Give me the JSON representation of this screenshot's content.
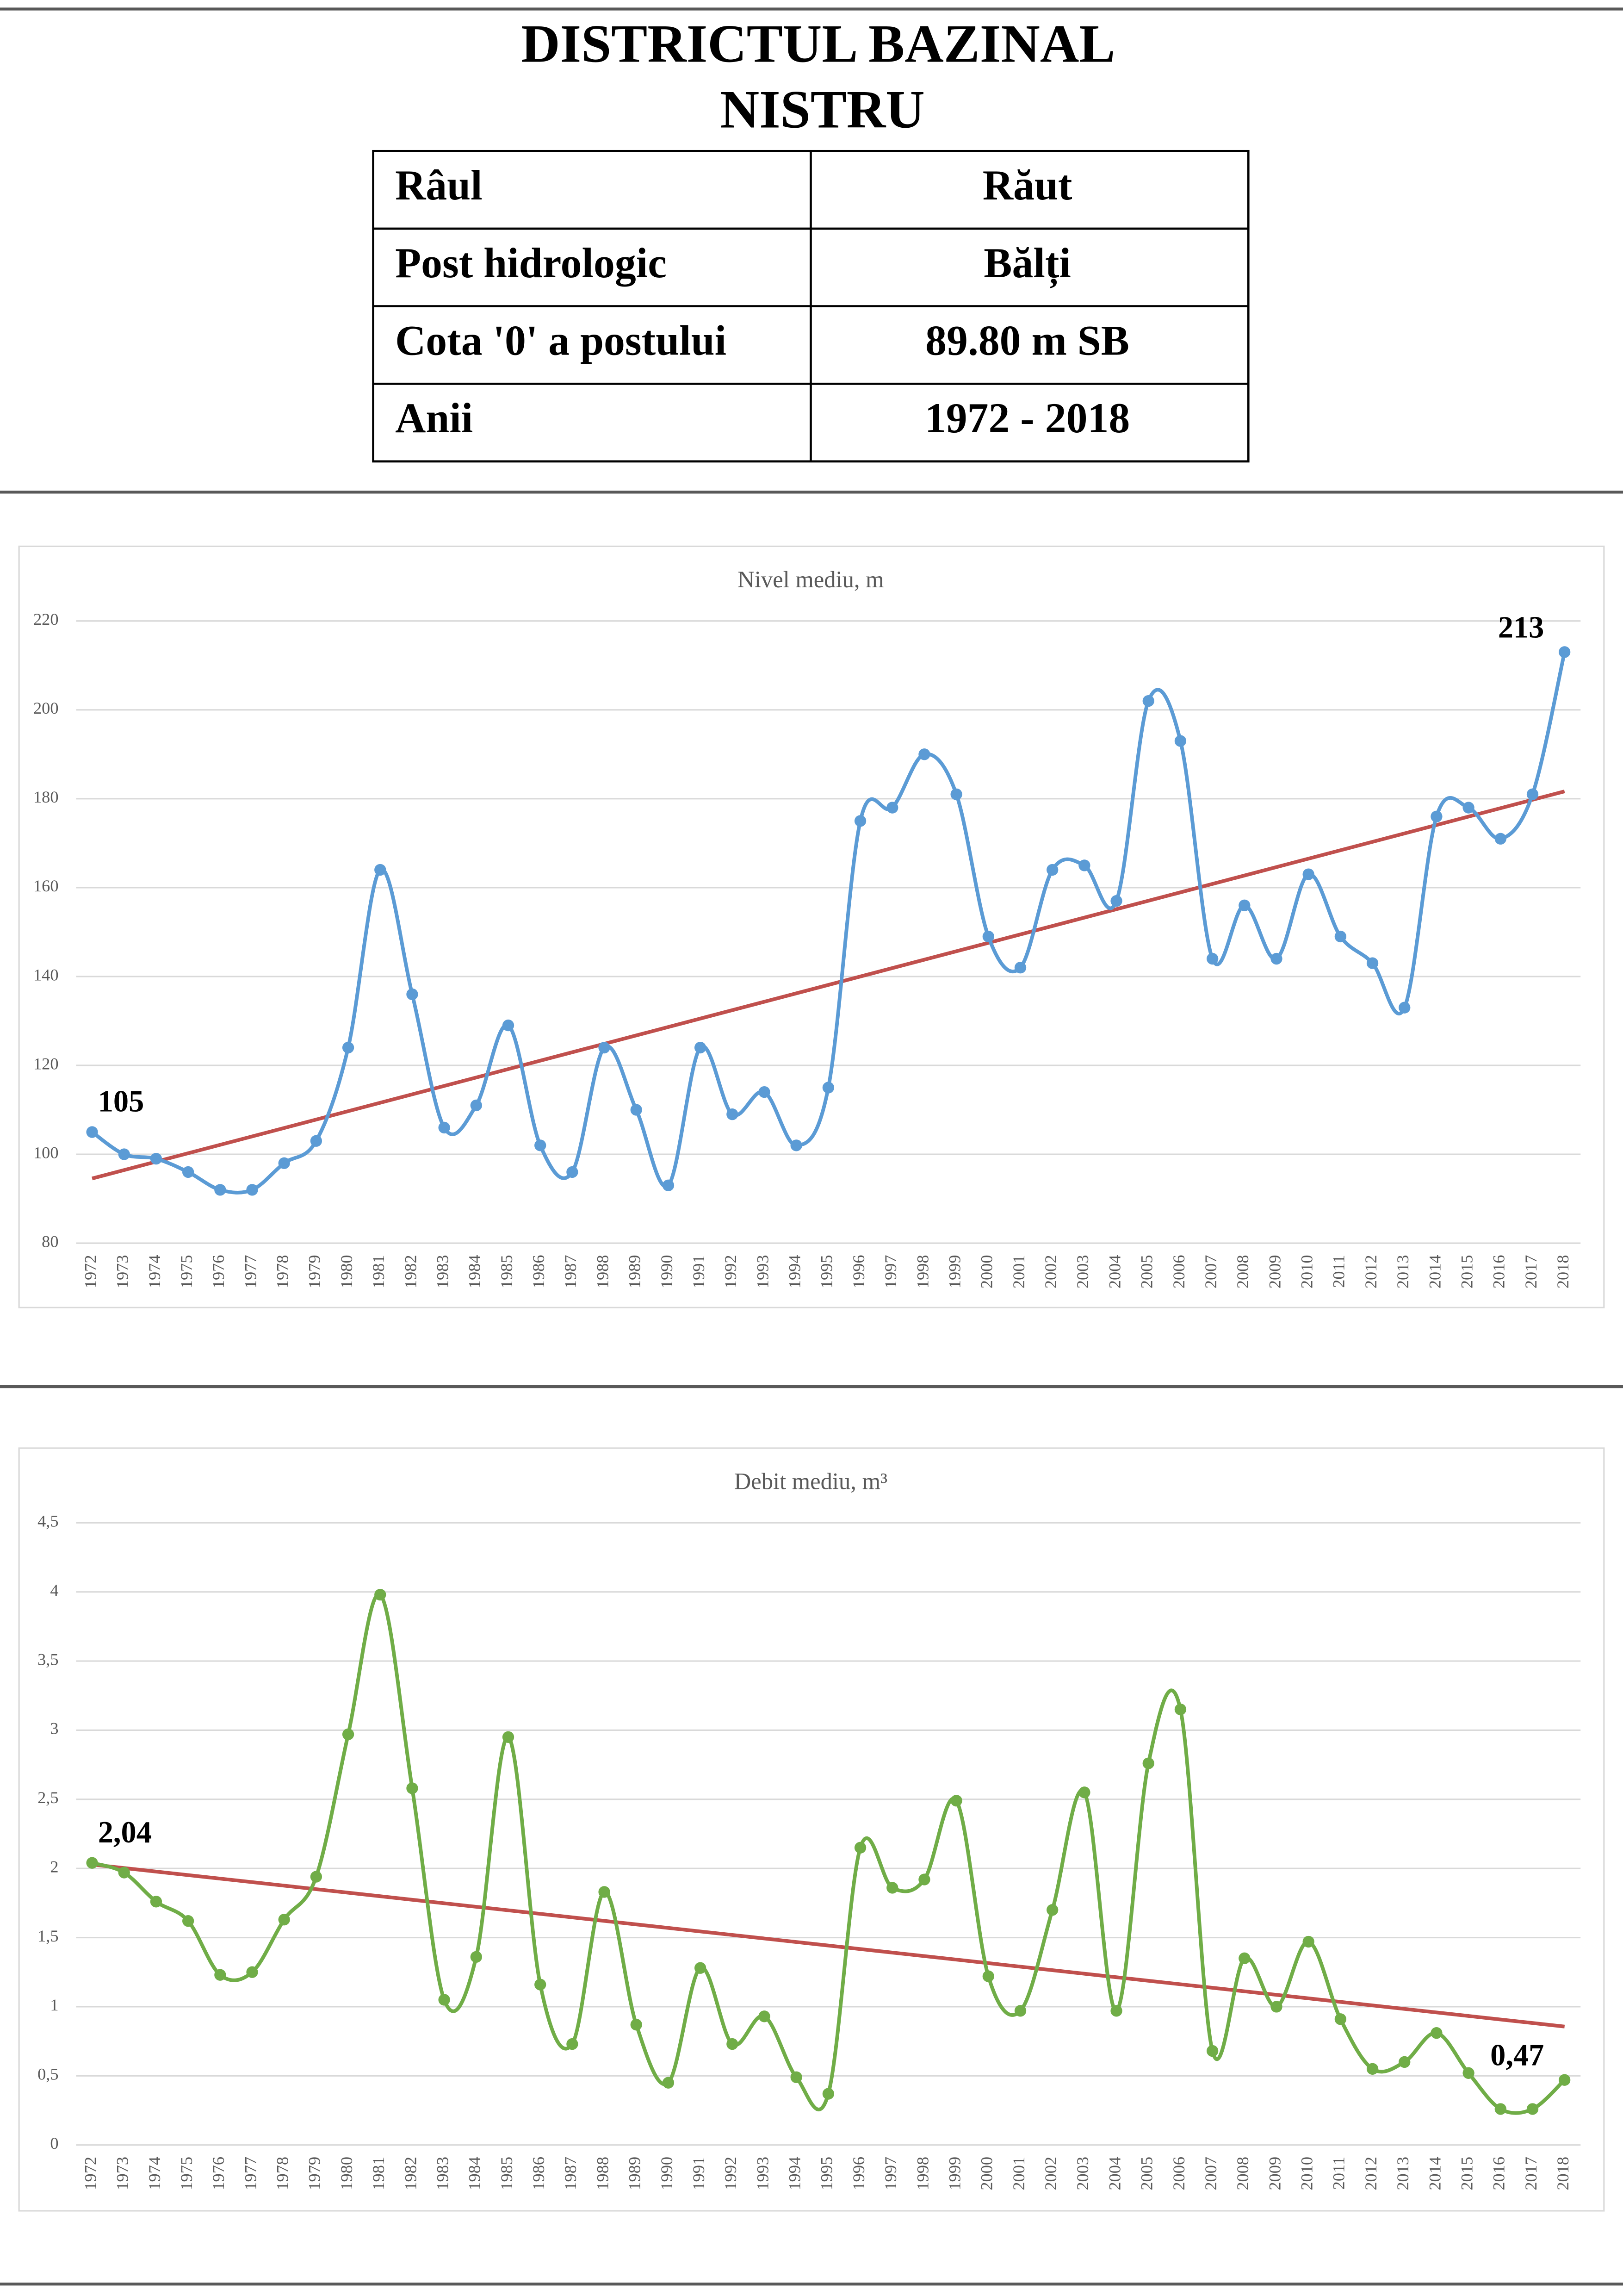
{
  "header": {
    "title": [
      "DISTRICTUL BAZINAL",
      "NISTRU"
    ]
  },
  "table": {
    "rows": [
      [
        "Râul",
        "Răut"
      ],
      [
        "Post hidrologic",
        "Bălți"
      ],
      [
        "Cota '0' a postului",
        "89.80 m SB"
      ],
      [
        "Anii",
        "1972 - 2018"
      ]
    ]
  },
  "chart_data": [
    {
      "type": "line",
      "title": "Nivel mediu, m",
      "categories": [
        "1972",
        "1973",
        "1974",
        "1975",
        "1976",
        "1977",
        "1978",
        "1979",
        "1980",
        "1981",
        "1982",
        "1983",
        "1984",
        "1985",
        "1986",
        "1987",
        "1988",
        "1989",
        "1990",
        "1991",
        "1992",
        "1993",
        "1994",
        "1995",
        "1996",
        "1997",
        "1998",
        "1999",
        "2000",
        "2001",
        "2002",
        "2003",
        "2004",
        "2005",
        "2006",
        "2007",
        "2008",
        "2009",
        "2010",
        "2011",
        "2012",
        "2013",
        "2014",
        "2015",
        "2016",
        "2017",
        "2018"
      ],
      "series": [
        {
          "name": "Nivel mediu",
          "color": "#5b9bd5",
          "values": [
            105,
            100,
            99,
            96,
            92,
            92,
            98,
            103,
            124,
            164,
            136,
            106,
            111,
            129,
            102,
            96,
            124,
            110,
            93,
            124,
            109,
            114,
            102,
            115,
            175,
            178,
            190,
            181,
            149,
            142,
            164,
            165,
            157,
            202,
            193,
            144,
            156,
            144,
            163,
            149,
            143,
            133,
            176,
            178,
            171,
            181,
            213
          ],
          "value_labels": [
            "105",
            null,
            null,
            null,
            null,
            null,
            null,
            null,
            null,
            null,
            null,
            null,
            null,
            null,
            null,
            null,
            null,
            null,
            null,
            null,
            null,
            null,
            null,
            null,
            null,
            null,
            null,
            null,
            null,
            null,
            null,
            null,
            null,
            null,
            null,
            null,
            null,
            null,
            null,
            null,
            null,
            null,
            null,
            null,
            null,
            null,
            "213"
          ]
        }
      ],
      "trendline": {
        "type": "linear",
        "color": "#c0504d"
      },
      "ylim": [
        80,
        220
      ],
      "yticks": [
        80,
        100,
        120,
        140,
        160,
        180,
        200,
        220
      ],
      "grid": true
    },
    {
      "type": "line",
      "title": "Debit mediu, m³",
      "categories": [
        "1972",
        "1973",
        "1974",
        "1975",
        "1976",
        "1977",
        "1978",
        "1979",
        "1980",
        "1981",
        "1982",
        "1983",
        "1984",
        "1985",
        "1986",
        "1987",
        "1988",
        "1989",
        "1990",
        "1991",
        "1992",
        "1993",
        "1994",
        "1995",
        "1996",
        "1997",
        "1998",
        "1999",
        "2000",
        "2001",
        "2002",
        "2003",
        "2004",
        "2005",
        "2006",
        "2007",
        "2008",
        "2009",
        "2010",
        "2011",
        "2012",
        "2013",
        "2014",
        "2015",
        "2016",
        "2017",
        "2018"
      ],
      "series": [
        {
          "name": "Debit mediu",
          "color": "#70ad47",
          "values": [
            2.04,
            1.97,
            1.76,
            1.62,
            1.23,
            1.25,
            1.63,
            1.94,
            2.97,
            3.98,
            2.58,
            1.05,
            1.36,
            2.95,
            1.16,
            0.73,
            1.83,
            0.87,
            0.45,
            1.28,
            0.73,
            0.93,
            0.49,
            0.37,
            2.15,
            1.86,
            1.92,
            2.49,
            1.22,
            0.97,
            1.7,
            2.55,
            0.97,
            2.76,
            3.15,
            0.68,
            1.35,
            1.0,
            1.47,
            0.91,
            0.55,
            0.6,
            0.81,
            0.52,
            0.26,
            0.26,
            0.47
          ],
          "value_labels": [
            "2,04",
            null,
            null,
            null,
            null,
            null,
            null,
            null,
            null,
            null,
            null,
            null,
            null,
            null,
            null,
            null,
            null,
            null,
            null,
            null,
            null,
            null,
            null,
            null,
            null,
            null,
            null,
            null,
            null,
            null,
            null,
            null,
            null,
            null,
            null,
            null,
            null,
            null,
            null,
            null,
            null,
            null,
            null,
            null,
            null,
            null,
            "0,47"
          ]
        }
      ],
      "trendline": {
        "type": "linear",
        "color": "#c0504d"
      },
      "ylim": [
        0,
        4.5
      ],
      "yticks": [
        0,
        {
          "value": 0.5,
          "label": "0,5"
        },
        1,
        {
          "value": 1.5,
          "label": "1,5"
        },
        2,
        {
          "value": 2.5,
          "label": "2,5"
        },
        3,
        {
          "value": 3.5,
          "label": "3,5"
        },
        4,
        {
          "value": 4.5,
          "label": "4,5"
        }
      ],
      "grid": true
    }
  ]
}
